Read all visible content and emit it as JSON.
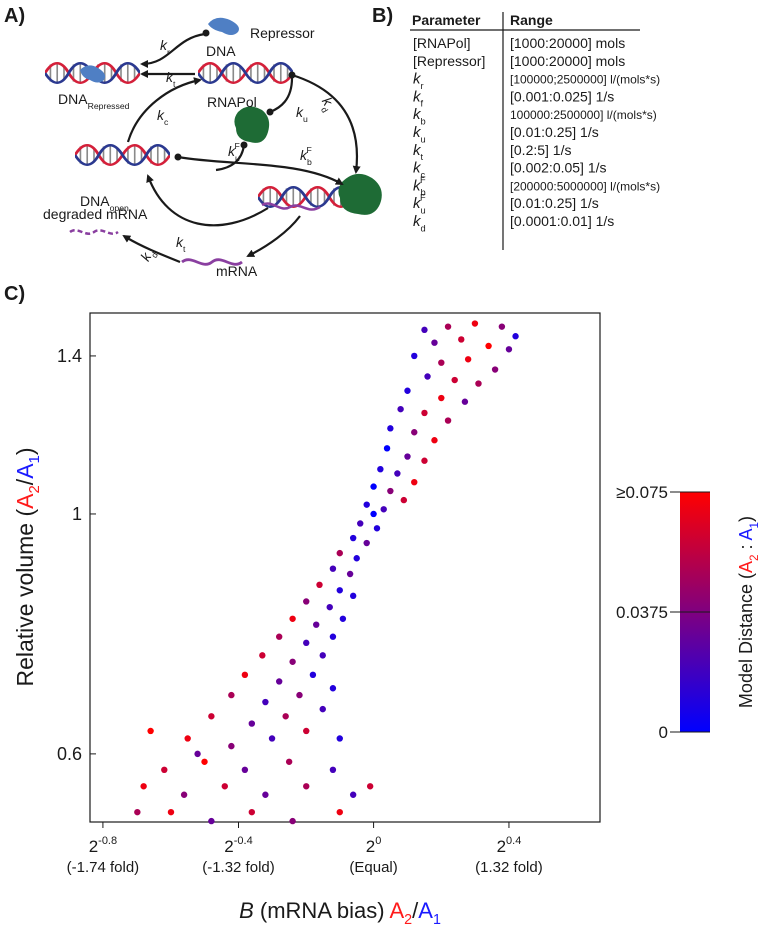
{
  "panel_labels": [
    "A)",
    "B)",
    "C)"
  ],
  "diagram": {
    "repressor": [
      "Repressor"
    ],
    "dna": [
      "DNA"
    ],
    "k_r": [
      "k",
      "r"
    ],
    "k_t_top": [
      "k",
      "t"
    ],
    "dna_repressed": [
      "DNA",
      "Repressed"
    ],
    "k_c": [
      "k",
      "c"
    ],
    "rnapol": [
      "RNAPol"
    ],
    "k_u": [
      "k",
      "u"
    ],
    "k_d": [
      "k",
      "d"
    ],
    "k_uF": [
      "k",
      "u",
      "F"
    ],
    "k_bF": [
      "k",
      "b",
      "F"
    ],
    "dna_open": [
      "DNA",
      "open"
    ],
    "degraded_mrna": [
      "degraded mRNA"
    ],
    "k_t": [
      "k",
      "t"
    ],
    "k_d_prime": [
      "k",
      "d'"
    ],
    "mrna": [
      "mRNA"
    ]
  },
  "table": {
    "header": [
      "Parameter",
      "Range"
    ],
    "rows": [
      [
        [
          "[RNAPol]"
        ],
        "[1000:20000] mols"
      ],
      [
        [
          "[Repressor]"
        ],
        "[1000:20000] mols"
      ],
      [
        [
          "k",
          "r"
        ],
        "[100000;2500000] l/(mols*s)"
      ],
      [
        [
          "k",
          "f"
        ],
        "[0.001:0.025] 1/s"
      ],
      [
        [
          "k",
          "b"
        ],
        "100000:2500000] l/(mols*s)"
      ],
      [
        [
          "k",
          "u"
        ],
        "[0.01:0.25] 1/s"
      ],
      [
        [
          "k",
          "t"
        ],
        "[0.2:5] 1/s"
      ],
      [
        [
          "k",
          "c"
        ],
        "[0.002:0.05] 1/s"
      ],
      [
        [
          "k",
          "b",
          "F"
        ],
        "[200000:5000000] l/(mols*s)"
      ],
      [
        [
          "k",
          "u",
          "F"
        ],
        "[0.01:0.25] 1/s"
      ],
      [
        [
          "k",
          "d"
        ],
        "[0.0001:0.01] 1/s"
      ]
    ]
  },
  "chart_data": {
    "type": "scatter",
    "x_label": [
      "B",
      " (mRNA bias) ",
      "A",
      "2",
      "/",
      "A",
      "1"
    ],
    "y_label": [
      "Relative volume (",
      "A",
      "2",
      "/",
      "A",
      "1",
      ")"
    ],
    "x_scale": "log",
    "y_scale": "log",
    "xlim": [
      0.559,
      1.591
    ],
    "ylim": [
      0.519,
      1.534
    ],
    "xticks": [
      {
        "value": 0.574,
        "label": [
          "2",
          "-0.8"
        ],
        "note": "(-1.74 fold)"
      },
      {
        "value": 0.758,
        "label": [
          "2",
          "-0.4"
        ],
        "note": "(-1.32 fold)"
      },
      {
        "value": 1,
        "label": [
          "2",
          "0"
        ],
        "note": "(Equal)"
      },
      {
        "value": 1.32,
        "label": [
          "2",
          "0.4"
        ],
        "note": "(1.32 fold)"
      }
    ],
    "yticks": [
      1.4,
      1,
      0.6
    ],
    "x": [
      1.11,
      1.165,
      1.231,
      1.301,
      1.338,
      1.133,
      1.197,
      1.266,
      1.32,
      1.087,
      1.149,
      1.214,
      1.283,
      1.117,
      1.181,
      1.24,
      1.072,
      1.149,
      1.206,
      1.057,
      1.11,
      1.165,
      1.035,
      1.087,
      1.133,
      1.028,
      1.072,
      1.11,
      1.014,
      1.05,
      1.087,
      1,
      1.035,
      1.064,
      0.986,
      1.021,
      1,
      0.973,
      1.007,
      0.959,
      0.986,
      0.933,
      0.966,
      0.92,
      0.953,
      0.895,
      0.933,
      0.871,
      0.914,
      0.959,
      0.847,
      0.889,
      0.939,
      0.824,
      0.871,
      0.92,
      0.796,
      0.847,
      0.901,
      0.768,
      0.824,
      0.883,
      0.747,
      0.801,
      0.859,
      0.92,
      0.717,
      0.779,
      0.835,
      0.901,
      0.683,
      0.747,
      0.812,
      0.871,
      0.933,
      0.651,
      0.707,
      0.768,
      0.841,
      0.92,
      0.624,
      0.678,
      0.737,
      0.801,
      0.871,
      0.959,
      0.616,
      0.66,
      0.717,
      0.779,
      0.847,
      0.933,
      0.993,
      0.633,
      0.697
    ],
    "values": [
      1.48,
      1.49,
      1.5,
      1.49,
      1.46,
      1.44,
      1.45,
      1.43,
      1.42,
      1.4,
      1.38,
      1.39,
      1.36,
      1.34,
      1.33,
      1.32,
      1.3,
      1.28,
      1.27,
      1.25,
      1.24,
      1.22,
      1.2,
      1.19,
      1.17,
      1.15,
      1.13,
      1.12,
      1.1,
      1.09,
      1.07,
      1.06,
      1.05,
      1.03,
      1.02,
      1.01,
      1,
      0.98,
      0.97,
      0.95,
      0.94,
      0.92,
      0.91,
      0.89,
      0.88,
      0.86,
      0.85,
      0.83,
      0.82,
      0.84,
      0.8,
      0.79,
      0.8,
      0.77,
      0.76,
      0.77,
      0.74,
      0.73,
      0.74,
      0.71,
      0.7,
      0.71,
      0.68,
      0.67,
      0.68,
      0.69,
      0.65,
      0.64,
      0.65,
      0.66,
      0.62,
      0.61,
      0.62,
      0.63,
      0.62,
      0.58,
      0.59,
      0.58,
      0.59,
      0.58,
      0.56,
      0.55,
      0.56,
      0.55,
      0.56,
      0.55,
      0.53,
      0.53,
      0.52,
      0.53,
      0.52,
      0.53,
      0.56,
      0.63,
      0.6
    ],
    "distance": [
      0.02,
      0.05,
      0.07,
      0.04,
      0.01,
      0.03,
      0.06,
      0.075,
      0.03,
      0.01,
      0.05,
      0.07,
      0.04,
      0.02,
      0.06,
      0.05,
      0.01,
      0.07,
      0.03,
      0.02,
      0.06,
      0.05,
      0.01,
      0.04,
      0.07,
      0,
      0.03,
      0.06,
      0.01,
      0.02,
      0.07,
      0,
      0.04,
      0.06,
      0.01,
      0.02,
      0,
      0.02,
      0.01,
      0.01,
      0.03,
      0.05,
      0.01,
      0.02,
      0.03,
      0.06,
      0.01,
      0.04,
      0.02,
      0.01,
      0.07,
      0.03,
      0.01,
      0.05,
      0.02,
      0.01,
      0.06,
      0.04,
      0.02,
      0.07,
      0.03,
      0.01,
      0.05,
      0.02,
      0.04,
      0.01,
      0.06,
      0.03,
      0.05,
      0.02,
      0.07,
      0.04,
      0.02,
      0.06,
      0.01,
      0.06,
      0.075,
      0.03,
      0.05,
      0.02,
      0.07,
      0.04,
      0.06,
      0.03,
      0.05,
      0.02,
      0.05,
      0.07,
      0.03,
      0.06,
      0.04,
      0.07,
      0.06,
      0.075,
      0.03
    ],
    "colorbar": {
      "label": [
        "Model Distance (",
        "A",
        "2",
        " : ",
        "A",
        "1",
        ")"
      ],
      "colormap": [
        "#0000ff",
        "#ff0000"
      ],
      "clim": [
        0,
        0.075
      ],
      "ticks": [
        {
          "value": 0.075,
          "label": "≥0.075"
        },
        0.0375,
        0
      ]
    }
  }
}
